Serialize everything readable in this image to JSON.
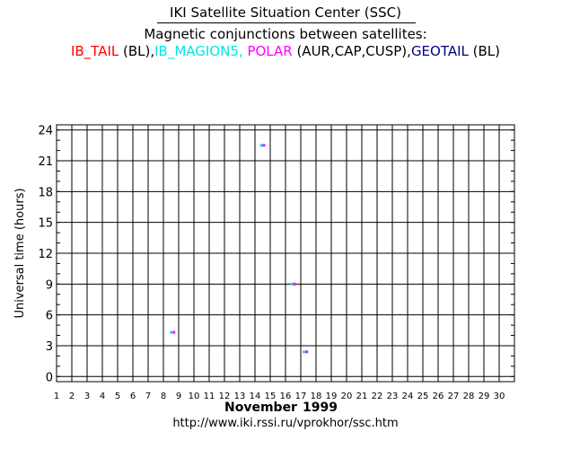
{
  "header": {
    "title": "IKI Satellite Situation Center (SSC)",
    "subtitle": "Magnetic conjunctions between satellites:",
    "legend": [
      {
        "text": "IB_TAIL",
        "color": "#ff0000"
      },
      {
        "text": " (BL),",
        "color": "#000000"
      },
      {
        "text": "IB_MAGION5,",
        "color": "#00e5e5"
      },
      {
        "text": " POLAR",
        "color": "#ff00ff"
      },
      {
        "text": " (AUR,CAP,CUSP),",
        "color": "#000000"
      },
      {
        "text": "GEOTAIL",
        "color": "#000080"
      },
      {
        "text": " (BL)",
        "color": "#000000"
      }
    ]
  },
  "chart_data": {
    "type": "scatter",
    "ylabel": "Universal time (hours)",
    "xlabel_month": "November",
    "xlabel_year": "1999",
    "x_ticks": [
      "1",
      "2",
      "3",
      "4",
      "5",
      "6",
      "7",
      "8",
      "9",
      "10",
      "11",
      "12",
      "13",
      "14",
      "15",
      "16",
      "17",
      "18",
      "19",
      "20",
      "21",
      "22",
      "23",
      "24",
      "25",
      "26",
      "27",
      "28",
      "29",
      "30"
    ],
    "y_ticks": [
      "0",
      "3",
      "6",
      "9",
      "12",
      "15",
      "18",
      "21",
      "24"
    ],
    "xlim": [
      1,
      31
    ],
    "ylim": [
      -0.5,
      24.5
    ],
    "grid": true,
    "points": [
      {
        "day": 8.6,
        "ut": 4.3,
        "colors": [
          "#00e5e5",
          "#ff00ff"
        ]
      },
      {
        "day": 14.5,
        "ut": 22.5,
        "colors": [
          "#00e5e5",
          "#ff00ff"
        ]
      },
      {
        "day": 16.5,
        "ut": 9.0,
        "colors": [
          "#00e5e5",
          "#ff00ff"
        ]
      },
      {
        "day": 17.3,
        "ut": 2.4,
        "colors": [
          "#00e5e5",
          "#ff00ff"
        ]
      }
    ]
  },
  "footer": {
    "url": "http://www.iki.rssi.ru/vprokhor/ssc.htm"
  }
}
